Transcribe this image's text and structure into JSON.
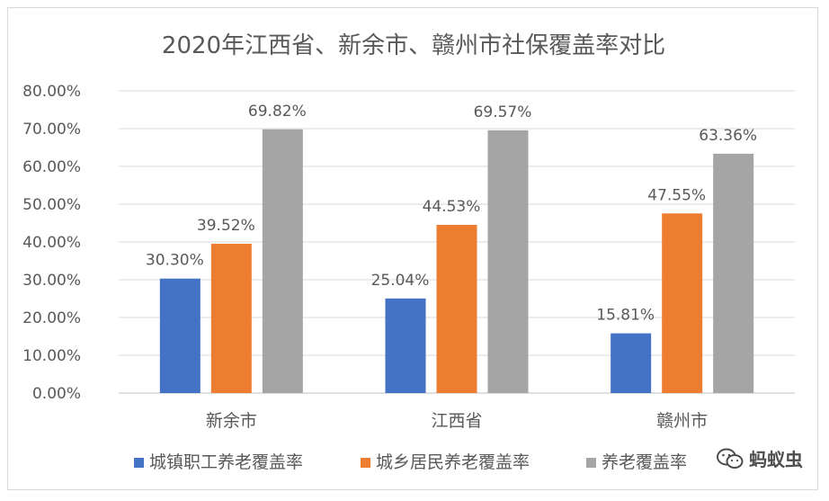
{
  "chart_data": {
    "type": "bar",
    "title": "2020年江西省、新余市、赣州市社保覆盖率对比",
    "categories": [
      "新余市",
      "江西省",
      "赣州市"
    ],
    "series": [
      {
        "name": "城镇职工养老覆盖率",
        "color": "#4472c4",
        "values": [
          30.3,
          25.04,
          15.81
        ],
        "labels": [
          "30.30%",
          "25.04%",
          "15.81%"
        ]
      },
      {
        "name": "城乡居民养老覆盖率",
        "color": "#ed7d31",
        "values": [
          39.52,
          44.53,
          47.55
        ],
        "labels": [
          "39.52%",
          "44.53%",
          "47.55%"
        ]
      },
      {
        "name": "养老覆盖率",
        "color": "#a5a5a5",
        "values": [
          69.82,
          69.57,
          63.36
        ],
        "labels": [
          "69.82%",
          "69.57%",
          "63.36%"
        ]
      }
    ],
    "ylim": [
      0,
      80
    ],
    "yticks": [
      "0.00%",
      "10.00%",
      "20.00%",
      "30.00%",
      "40.00%",
      "50.00%",
      "60.00%",
      "70.00%",
      "80.00%"
    ],
    "grid": true,
    "legend": "bottom"
  },
  "watermark": {
    "text": "蚂蚁虫",
    "icon": "wechat-icon"
  }
}
